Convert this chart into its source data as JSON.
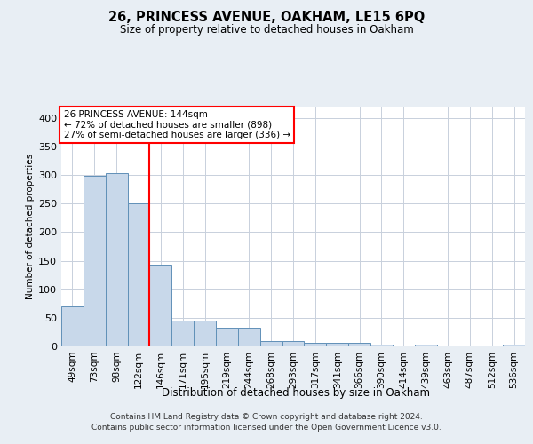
{
  "title": "26, PRINCESS AVENUE, OAKHAM, LE15 6PQ",
  "subtitle": "Size of property relative to detached houses in Oakham",
  "xlabel": "Distribution of detached houses by size in Oakham",
  "ylabel": "Number of detached properties",
  "categories": [
    "49sqm",
    "73sqm",
    "98sqm",
    "122sqm",
    "146sqm",
    "171sqm",
    "195sqm",
    "219sqm",
    "244sqm",
    "268sqm",
    "293sqm",
    "317sqm",
    "341sqm",
    "366sqm",
    "390sqm",
    "414sqm",
    "439sqm",
    "463sqm",
    "487sqm",
    "512sqm",
    "536sqm"
  ],
  "values": [
    70,
    298,
    303,
    250,
    143,
    45,
    45,
    32,
    32,
    9,
    9,
    6,
    6,
    6,
    3,
    0,
    3,
    0,
    0,
    0,
    3
  ],
  "bar_color": "#c8d8ea",
  "bar_edge_color": "#6090b8",
  "vline_index": 4,
  "vline_color": "red",
  "annotation_text": "26 PRINCESS AVENUE: 144sqm\n← 72% of detached houses are smaller (898)\n27% of semi-detached houses are larger (336) →",
  "annotation_facecolor": "white",
  "annotation_edgecolor": "red",
  "ylim_max": 420,
  "yticks": [
    0,
    50,
    100,
    150,
    200,
    250,
    300,
    350,
    400
  ],
  "footer_line1": "Contains HM Land Registry data © Crown copyright and database right 2024.",
  "footer_line2": "Contains public sector information licensed under the Open Government Licence v3.0.",
  "bg_color": "#e8eef4",
  "plot_bg_color": "#ffffff",
  "grid_color": "#c8d0dc",
  "title_fontsize": 10.5,
  "subtitle_fontsize": 8.5,
  "xlabel_fontsize": 8.5,
  "ylabel_fontsize": 7.5,
  "tick_fontsize": 7.5,
  "ytick_fontsize": 8.0,
  "footer_fontsize": 6.5,
  "annot_fontsize": 7.5
}
